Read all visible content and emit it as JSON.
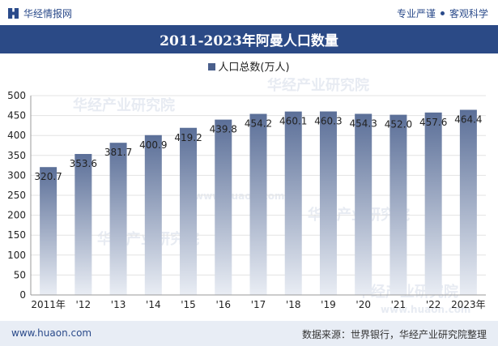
{
  "header": {
    "site_name": "华经情报网",
    "slogan_left": "专业严谨",
    "slogan_right": "客观科学"
  },
  "chart_data": {
    "type": "bar",
    "title": "2011-2023年阿曼人口数量",
    "categories": [
      "2011年",
      "'12",
      "'13",
      "'14",
      "'15",
      "'16",
      "'17",
      "'18",
      "'19",
      "'20",
      "'21",
      "'22",
      "2023年"
    ],
    "series": [
      {
        "name": "人口总数(万人)",
        "values": [
          320.7,
          353.6,
          381.7,
          400.9,
          419.2,
          439.8,
          454.2,
          460.1,
          460.3,
          454.3,
          452.0,
          457.6,
          464.4
        ]
      }
    ],
    "ylim": [
      0,
      500
    ],
    "yticks": [
      0,
      50,
      100,
      150,
      200,
      250,
      300,
      350,
      400,
      450,
      500
    ],
    "grid": true,
    "legend": "top-center",
    "bar_color_top": "#5b6f98",
    "bar_color_bottom": "#e9edf4"
  },
  "watermark": "华经产业研究院",
  "watermark_url": "www.huaon.com",
  "footer": {
    "url": "www.huaon.com",
    "source": "数据来源：世界银行，华经产业研究院整理"
  }
}
